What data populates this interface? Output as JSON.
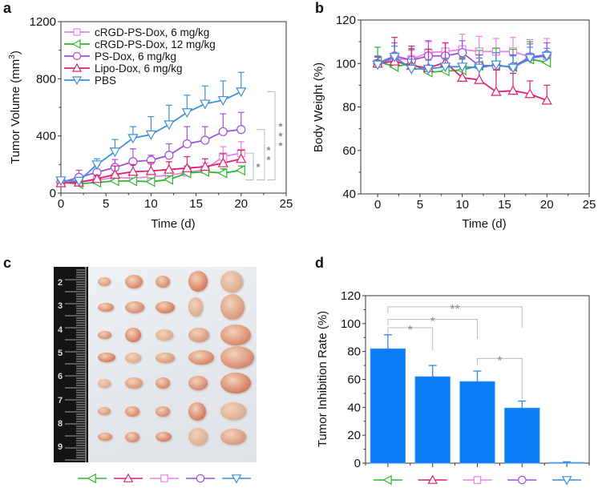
{
  "figure": {
    "panel_labels": [
      "a",
      "b",
      "c",
      "d"
    ]
  },
  "series_styles": [
    {
      "key": "crgd6",
      "label": "cRGD-PS-Dox, 6 mg/kg",
      "color": "#e884e8",
      "marker": "square"
    },
    {
      "key": "crgd12",
      "label": "cRGD-PS-Dox, 12 mg/kg",
      "color": "#2fb52f",
      "marker": "triangle-left"
    },
    {
      "key": "psdox",
      "label": "PS-Dox, 6 mg/kg",
      "color": "#a24fdc",
      "marker": "circle"
    },
    {
      "key": "lipo",
      "label": "Lipo-Dox, 6 mg/kg",
      "color": "#e0206e",
      "marker": "triangle-up"
    },
    {
      "key": "pbs",
      "label": "PBS",
      "color": "#3c8fd8",
      "marker": "triangle-down"
    }
  ],
  "chart_data": [
    {
      "id": "a",
      "type": "line",
      "title": "",
      "xlabel": "Time (d)",
      "ylabel": "Tumor Volume (mm³)",
      "ylabel_main": "Tumor Volume (mm",
      "ylabel_sup": "3",
      "ylabel_end": ")",
      "xlim": [
        0,
        25
      ],
      "ylim": [
        0,
        1200
      ],
      "xticks": [
        0,
        5,
        10,
        15,
        20,
        25
      ],
      "yticks": [
        0,
        400,
        800,
        1200
      ],
      "legend": "top-left",
      "x": [
        0,
        2,
        4,
        6,
        8,
        10,
        12,
        14,
        16,
        18,
        20
      ],
      "series": [
        {
          "name": "cRGD-PS-Dox, 6 mg/kg",
          "values": [
            80,
            80,
            90,
            110,
            105,
            115,
            125,
            145,
            165,
            255,
            280
          ],
          "errors": [
            20,
            20,
            25,
            30,
            30,
            30,
            35,
            40,
            45,
            70,
            80
          ]
        },
        {
          "name": "cRGD-PS-Dox, 12 mg/kg",
          "values": [
            75,
            65,
            75,
            85,
            85,
            80,
            95,
            140,
            150,
            140,
            160
          ],
          "errors": [
            15,
            15,
            20,
            20,
            20,
            25,
            25,
            50,
            30,
            30,
            30
          ]
        },
        {
          "name": "PS-Dox, 6 mg/kg",
          "values": [
            75,
            110,
            145,
            180,
            220,
            230,
            265,
            345,
            370,
            430,
            445
          ],
          "errors": [
            20,
            50,
            50,
            55,
            90,
            35,
            80,
            120,
            95,
            125,
            120
          ]
        },
        {
          "name": "Lipo-Dox, 6 mg/kg",
          "values": [
            70,
            75,
            100,
            130,
            150,
            155,
            165,
            175,
            185,
            210,
            240
          ],
          "errors": [
            15,
            15,
            25,
            60,
            50,
            60,
            55,
            80,
            55,
            65,
            60
          ]
        },
        {
          "name": "PBS",
          "values": [
            88,
            85,
            200,
            290,
            385,
            410,
            480,
            565,
            625,
            650,
            710
          ],
          "errors": [
            15,
            20,
            40,
            85,
            80,
            125,
            135,
            120,
            125,
            135,
            135
          ]
        }
      ],
      "annotations": [
        {
          "label": "*",
          "between": [
            "cRGD-PS-Dox, 12 mg/kg",
            "cRGD-PS-Dox, 6 mg/kg"
          ]
        },
        {
          "label": "**",
          "between": [
            "cRGD-PS-Dox, 12 mg/kg",
            "PS-Dox, 6 mg/kg"
          ]
        },
        {
          "label": "***",
          "between": [
            "cRGD-PS-Dox, 12 mg/kg",
            "PBS"
          ]
        }
      ]
    },
    {
      "id": "b",
      "type": "line",
      "title": "",
      "xlabel": "Time (d)",
      "ylabel": "Body Weight (%)",
      "xlim": [
        -2,
        25
      ],
      "ylim": [
        40,
        120
      ],
      "xticks": [
        0,
        5,
        10,
        15,
        20,
        25
      ],
      "yticks": [
        40,
        60,
        80,
        100,
        120
      ],
      "x": [
        0,
        2,
        4,
        6,
        8,
        10,
        12,
        14,
        16,
        18,
        20
      ],
      "series": [
        {
          "name": "cRGD-PS-Dox, 6 mg/kg",
          "values": [
            100,
            102,
            102,
            105,
            105.5,
            106.5,
            105.5,
            105.5,
            105.5,
            103,
            103.5
          ],
          "errors": [
            3,
            6,
            4,
            5,
            4,
            7,
            7,
            6,
            6.5,
            8,
            8
          ]
        },
        {
          "name": "cRGD-PS-Dox, 12 mg/kg",
          "values": [
            101,
            98.5,
            100,
            96,
            96.5,
            97,
            99,
            99,
            98.5,
            102,
            100.5
          ],
          "errors": [
            6.5,
            5,
            7,
            7,
            7,
            6,
            7,
            8,
            8,
            8,
            4
          ]
        },
        {
          "name": "PS-Dox, 6 mg/kg",
          "values": [
            100,
            103.5,
            101.5,
            103.5,
            103.5,
            105,
            99,
            99,
            98.5,
            103,
            104
          ],
          "errors": [
            3,
            6,
            5,
            7,
            6,
            5.5,
            5,
            6,
            5.5,
            6,
            5.5
          ]
        },
        {
          "name": "Lipo-Dox, 6 mg/kg",
          "values": [
            100,
            101,
            99,
            98,
            100.5,
            93.5,
            92.5,
            87,
            87.5,
            86,
            83
          ],
          "errors": [
            3,
            11,
            9,
            8.5,
            9,
            8.5,
            10,
            10,
            8,
            6,
            7
          ]
        },
        {
          "name": "PBS",
          "values": [
            99.5,
            103,
            97.5,
            97.5,
            98.5,
            98.5,
            98,
            99.5,
            98,
            102.5,
            103.5
          ],
          "errors": [
            4,
            5,
            4.5,
            4,
            4,
            4,
            4.5,
            5.5,
            5.5,
            5,
            3.5
          ]
        }
      ]
    },
    {
      "id": "d",
      "type": "bar",
      "title": "",
      "xlabel": "",
      "ylabel": "Tumor Inhibition Rate (%)",
      "ylim": [
        0,
        120
      ],
      "yticks": [
        0,
        20,
        40,
        60,
        80,
        100,
        120
      ],
      "categories": [
        "cRGD-PS-Dox, 12 mg/kg",
        "Lipo-Dox, 6 mg/kg",
        "cRGD-PS-Dox, 6 mg/kg",
        "PS-Dox, 6 mg/kg",
        "PBS"
      ],
      "category_markers": [
        "triangle-left",
        "triangle-up",
        "square",
        "circle",
        "triangle-down"
      ],
      "values": [
        82,
        62,
        58.5,
        39.5,
        0.5
      ],
      "errors": [
        10,
        8,
        7.5,
        5,
        0.5
      ],
      "bar_color": "#0a7cf5",
      "annotations": [
        {
          "label": "*",
          "between": [
            0,
            1
          ]
        },
        {
          "label": "*",
          "between": [
            0,
            2
          ]
        },
        {
          "label": "**",
          "between": [
            0,
            3
          ]
        },
        {
          "label": "*",
          "between": [
            2,
            3
          ]
        }
      ]
    }
  ],
  "photo_c": {
    "description": "Excised tumors photo with ruler",
    "ruler_labels": [
      "2",
      "3",
      "4",
      "5",
      "6",
      "7",
      "8",
      "9"
    ],
    "legend_markers": [
      "triangle-left",
      "triangle-up",
      "square",
      "circle",
      "triangle-down"
    ],
    "legend_colors": [
      "#2fb52f",
      "#e0206e",
      "#e884e8",
      "#a24fdc",
      "#3c8fd8"
    ]
  }
}
